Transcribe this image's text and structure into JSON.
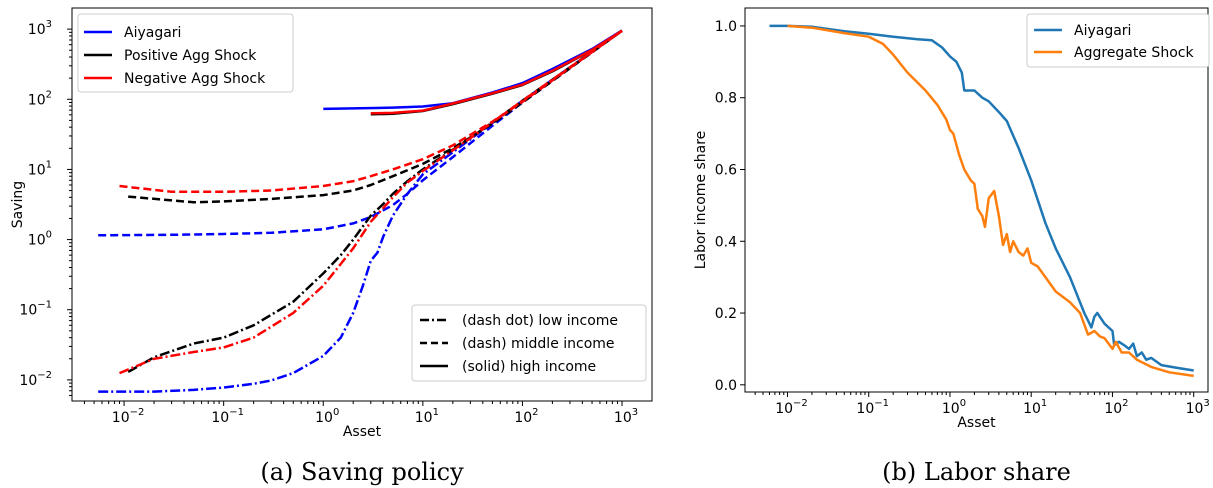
{
  "chart_data": [
    {
      "type": "line",
      "caption": "(a) Saving policy",
      "xlabel": "Asset",
      "ylabel": "Saving",
      "xscale": "log",
      "yscale": "log",
      "xlim": [
        0.003,
        2000
      ],
      "ylim": [
        0.005,
        2000
      ],
      "xticks": [
        0.01,
        0.1,
        1,
        10,
        100,
        1000
      ],
      "yticks": [
        0.01,
        0.1,
        1,
        10,
        100,
        1000
      ],
      "xtick_labels": [
        [
          "10",
          "−2"
        ],
        [
          "10",
          "−1"
        ],
        [
          "10",
          "0"
        ],
        [
          "10",
          "1"
        ],
        [
          "10",
          "2"
        ],
        [
          "10",
          "3"
        ]
      ],
      "ytick_labels": [
        [
          "10",
          "−2"
        ],
        [
          "10",
          "−1"
        ],
        [
          "10",
          "0"
        ],
        [
          "10",
          "1"
        ],
        [
          "10",
          "2"
        ],
        [
          "10",
          "3"
        ]
      ],
      "legend_series": {
        "placement": "upper-left",
        "entries": [
          {
            "label": "Aiyagari",
            "color": "#0000ff"
          },
          {
            "label": "Positive Agg Shock",
            "color": "#000000"
          },
          {
            "label": "Negative Agg Shock",
            "color": "#ff0000"
          }
        ]
      },
      "legend_styles": {
        "placement": "lower-right",
        "entries": [
          {
            "label": "(dash dot) low income",
            "dash": "dashdot"
          },
          {
            "label": "(dash) middle income",
            "dash": "dash"
          },
          {
            "label": "(solid) high income",
            "dash": "solid"
          }
        ]
      },
      "series": [
        {
          "color": "#0000ff",
          "dash": "dashdot",
          "points": [
            [
              0.0055,
              0.0068
            ],
            [
              0.02,
              0.0068
            ],
            [
              0.05,
              0.0072
            ],
            [
              0.1,
              0.0078
            ],
            [
              0.2,
              0.0088
            ],
            [
              0.3,
              0.0098
            ],
            [
              0.5,
              0.0125
            ],
            [
              1,
              0.022
            ],
            [
              1.5,
              0.04
            ],
            [
              2,
              0.09
            ],
            [
              2.5,
              0.22
            ],
            [
              3,
              0.5
            ],
            [
              3.5,
              0.65
            ],
            [
              4,
              1.1
            ],
            [
              5,
              2.2
            ],
            [
              7,
              4.5
            ],
            [
              10,
              8.5
            ],
            [
              30,
              27
            ],
            [
              100,
              95
            ],
            [
              1000,
              950
            ]
          ]
        },
        {
          "color": "#0000ff",
          "dash": "dash",
          "points": [
            [
              0.0055,
              1.15
            ],
            [
              0.03,
              1.17
            ],
            [
              0.1,
              1.2
            ],
            [
              0.3,
              1.25
            ],
            [
              1,
              1.4
            ],
            [
              2,
              1.7
            ],
            [
              3,
              2.1
            ],
            [
              5,
              3.1
            ],
            [
              7,
              4.5
            ],
            [
              10,
              7
            ],
            [
              20,
              15
            ],
            [
              50,
              42
            ],
            [
              100,
              90
            ],
            [
              1000,
              950
            ]
          ]
        },
        {
          "color": "#0000ff",
          "dash": "solid",
          "points": [
            [
              1,
              73
            ],
            [
              2,
              74
            ],
            [
              5,
              76
            ],
            [
              10,
              79
            ],
            [
              20,
              88
            ],
            [
              50,
              125
            ],
            [
              100,
              170
            ],
            [
              200,
              270
            ],
            [
              500,
              520
            ],
            [
              1000,
              960
            ]
          ]
        },
        {
          "color": "#000000",
          "dash": "dashdot",
          "points": [
            [
              0.011,
              0.013
            ],
            [
              0.02,
              0.021
            ],
            [
              0.05,
              0.033
            ],
            [
              0.1,
              0.04
            ],
            [
              0.2,
              0.06
            ],
            [
              0.5,
              0.13
            ],
            [
              1,
              0.33
            ],
            [
              1.5,
              0.6
            ],
            [
              2,
              1
            ],
            [
              3,
              2.2
            ],
            [
              4,
              3.2
            ],
            [
              5,
              4.5
            ],
            [
              7,
              6.8
            ],
            [
              10,
              10
            ],
            [
              30,
              28
            ],
            [
              100,
              95
            ],
            [
              1000,
              950
            ]
          ]
        },
        {
          "color": "#000000",
          "dash": "dash",
          "points": [
            [
              0.011,
              4.1
            ],
            [
              0.05,
              3.4
            ],
            [
              0.1,
              3.5
            ],
            [
              0.3,
              3.8
            ],
            [
              1,
              4.3
            ],
            [
              2,
              5
            ],
            [
              3,
              6
            ],
            [
              5,
              8
            ],
            [
              10,
              12
            ],
            [
              20,
              20
            ],
            [
              50,
              45
            ],
            [
              100,
              90
            ],
            [
              1000,
              950
            ]
          ]
        },
        {
          "color": "#000000",
          "dash": "solid",
          "points": [
            [
              3,
              61
            ],
            [
              5,
              62
            ],
            [
              10,
              68
            ],
            [
              20,
              85
            ],
            [
              50,
              120
            ],
            [
              100,
              160
            ],
            [
              200,
              250
            ],
            [
              500,
              500
            ],
            [
              1000,
              940
            ]
          ]
        },
        {
          "color": "#ff0000",
          "dash": "dashdot",
          "points": [
            [
              0.009,
              0.0125
            ],
            [
              0.02,
              0.02
            ],
            [
              0.05,
              0.025
            ],
            [
              0.1,
              0.029
            ],
            [
              0.2,
              0.04
            ],
            [
              0.5,
              0.09
            ],
            [
              1,
              0.22
            ],
            [
              1.5,
              0.45
            ],
            [
              2,
              0.75
            ],
            [
              3,
              1.8
            ],
            [
              4,
              2.8
            ],
            [
              5,
              4
            ],
            [
              7,
              6.5
            ],
            [
              10,
              9.5
            ],
            [
              30,
              28
            ],
            [
              100,
              95
            ],
            [
              1000,
              950
            ]
          ]
        },
        {
          "color": "#ff0000",
          "dash": "dash",
          "points": [
            [
              0.009,
              5.8
            ],
            [
              0.03,
              4.8
            ],
            [
              0.1,
              4.8
            ],
            [
              0.3,
              5.0
            ],
            [
              1,
              5.8
            ],
            [
              2,
              6.8
            ],
            [
              3,
              8
            ],
            [
              5,
              10
            ],
            [
              10,
              14
            ],
            [
              20,
              22
            ],
            [
              50,
              48
            ],
            [
              100,
              92
            ],
            [
              1000,
              950
            ]
          ]
        },
        {
          "color": "#ff0000",
          "dash": "solid",
          "points": [
            [
              3,
              63
            ],
            [
              5,
              64
            ],
            [
              10,
              69
            ],
            [
              20,
              87
            ],
            [
              50,
              122
            ],
            [
              100,
              162
            ],
            [
              200,
              255
            ],
            [
              500,
              505
            ],
            [
              1000,
              945
            ]
          ]
        }
      ]
    },
    {
      "type": "line",
      "caption": "(b) Labor share",
      "xlabel": "Asset",
      "ylabel": "Labor income share",
      "xscale": "log",
      "yscale": "linear",
      "xlim": [
        0.003,
        1500
      ],
      "ylim": [
        -0.02,
        1.05
      ],
      "xticks": [
        0.01,
        0.1,
        1,
        10,
        100,
        1000
      ],
      "yticks": [
        0.0,
        0.2,
        0.4,
        0.6,
        0.8,
        1.0
      ],
      "xtick_labels": [
        [
          "10",
          "−2"
        ],
        [
          "10",
          "−1"
        ],
        [
          "10",
          "0"
        ],
        [
          "10",
          "1"
        ],
        [
          "10",
          "2"
        ],
        [
          "10",
          "3"
        ]
      ],
      "ytick_labels": [
        "0.0",
        "0.2",
        "0.4",
        "0.6",
        "0.8",
        "1.0"
      ],
      "legend": {
        "placement": "upper-right",
        "entries": [
          {
            "label": "Aiyagari",
            "color": "#1f77b4"
          },
          {
            "label": "Aggregate Shock",
            "color": "#ff7f0e"
          }
        ]
      },
      "series": [
        {
          "name": "Aiyagari",
          "color": "#1f77b4",
          "points": [
            [
              0.006,
              1.0
            ],
            [
              0.01,
              1.0
            ],
            [
              0.02,
              0.998
            ],
            [
              0.05,
              0.985
            ],
            [
              0.1,
              0.978
            ],
            [
              0.2,
              0.97
            ],
            [
              0.4,
              0.963
            ],
            [
              0.6,
              0.96
            ],
            [
              0.8,
              0.94
            ],
            [
              1.0,
              0.915
            ],
            [
              1.2,
              0.9
            ],
            [
              1.4,
              0.87
            ],
            [
              1.5,
              0.82
            ],
            [
              1.8,
              0.82
            ],
            [
              2.0,
              0.82
            ],
            [
              2.5,
              0.8
            ],
            [
              3,
              0.79
            ],
            [
              4,
              0.76
            ],
            [
              5,
              0.735
            ],
            [
              7,
              0.66
            ],
            [
              10,
              0.57
            ],
            [
              15,
              0.45
            ],
            [
              20,
              0.38
            ],
            [
              30,
              0.3
            ],
            [
              45,
              0.2
            ],
            [
              55,
              0.16
            ],
            [
              60,
              0.19
            ],
            [
              65,
              0.2
            ],
            [
              80,
              0.17
            ],
            [
              100,
              0.15
            ],
            [
              105,
              0.11
            ],
            [
              120,
              0.12
            ],
            [
              140,
              0.11
            ],
            [
              160,
              0.1
            ],
            [
              180,
              0.115
            ],
            [
              200,
              0.08
            ],
            [
              230,
              0.09
            ],
            [
              260,
              0.07
            ],
            [
              300,
              0.075
            ],
            [
              400,
              0.055
            ],
            [
              600,
              0.048
            ],
            [
              1000,
              0.04
            ]
          ]
        },
        {
          "name": "Aggregate Shock",
          "color": "#ff7f0e",
          "points": [
            [
              0.01,
              1.0
            ],
            [
              0.02,
              0.995
            ],
            [
              0.05,
              0.98
            ],
            [
              0.1,
              0.97
            ],
            [
              0.15,
              0.95
            ],
            [
              0.2,
              0.92
            ],
            [
              0.3,
              0.87
            ],
            [
              0.5,
              0.82
            ],
            [
              0.7,
              0.78
            ],
            [
              0.9,
              0.74
            ],
            [
              1.0,
              0.71
            ],
            [
              1.1,
              0.7
            ],
            [
              1.3,
              0.64
            ],
            [
              1.5,
              0.6
            ],
            [
              1.8,
              0.57
            ],
            [
              2.0,
              0.56
            ],
            [
              2.2,
              0.49
            ],
            [
              2.5,
              0.47
            ],
            [
              2.7,
              0.44
            ],
            [
              3.0,
              0.52
            ],
            [
              3.5,
              0.54
            ],
            [
              4.0,
              0.47
            ],
            [
              4.5,
              0.39
            ],
            [
              5,
              0.42
            ],
            [
              5.5,
              0.37
            ],
            [
              6,
              0.4
            ],
            [
              7,
              0.37
            ],
            [
              8,
              0.36
            ],
            [
              9,
              0.38
            ],
            [
              10,
              0.34
            ],
            [
              12,
              0.33
            ],
            [
              15,
              0.3
            ],
            [
              20,
              0.26
            ],
            [
              30,
              0.23
            ],
            [
              40,
              0.2
            ],
            [
              50,
              0.14
            ],
            [
              60,
              0.15
            ],
            [
              70,
              0.135
            ],
            [
              80,
              0.13
            ],
            [
              100,
              0.1
            ],
            [
              110,
              0.12
            ],
            [
              130,
              0.09
            ],
            [
              160,
              0.09
            ],
            [
              200,
              0.07
            ],
            [
              300,
              0.05
            ],
            [
              500,
              0.035
            ],
            [
              1000,
              0.025
            ]
          ]
        }
      ]
    }
  ]
}
